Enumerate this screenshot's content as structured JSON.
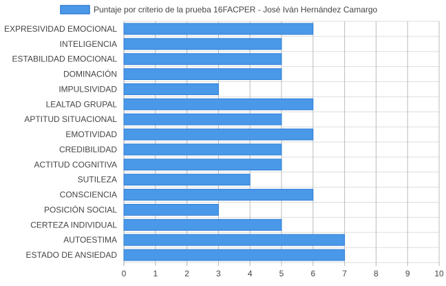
{
  "chart_data": {
    "type": "bar",
    "orientation": "horizontal",
    "categories": [
      "EXPRESIVIDAD EMOCIONAL",
      "INTELIGENCIA",
      "ESTABILIDAD EMOCIONAL",
      "DOMINACIÓN",
      "IMPULSIVIDAD",
      "LEALTAD GRUPAL",
      "APTITUD SITUACIONAL",
      "EMOTIVIDAD",
      "CREDIBILIDAD",
      "ACTITUD COGNITIVA",
      "SUTILEZA",
      "CONSCIENCIA",
      "POSICIÓN SOCIAL",
      "CERTEZA INDIVIDUAL",
      "AUTOESTIMA",
      "ESTADO DE ANSIEDAD"
    ],
    "series": [
      {
        "name": "Puntaje por criterio de la prueba 16FACPER - José Iván Hernández Camargo",
        "values": [
          6,
          5,
          5,
          5,
          3,
          6,
          5,
          6,
          5,
          5,
          4,
          6,
          3,
          5,
          7,
          7
        ],
        "color": "#4a98e8",
        "border_color": "#2f7fd6"
      }
    ],
    "xlim": [
      0,
      10
    ],
    "x_ticks": [
      "0",
      "1",
      "2",
      "3",
      "4",
      "5",
      "6",
      "7",
      "8",
      "9",
      "10"
    ],
    "grid": true,
    "legend_position": "top",
    "grid_color": "#dddddd",
    "label_color": "#444444"
  }
}
